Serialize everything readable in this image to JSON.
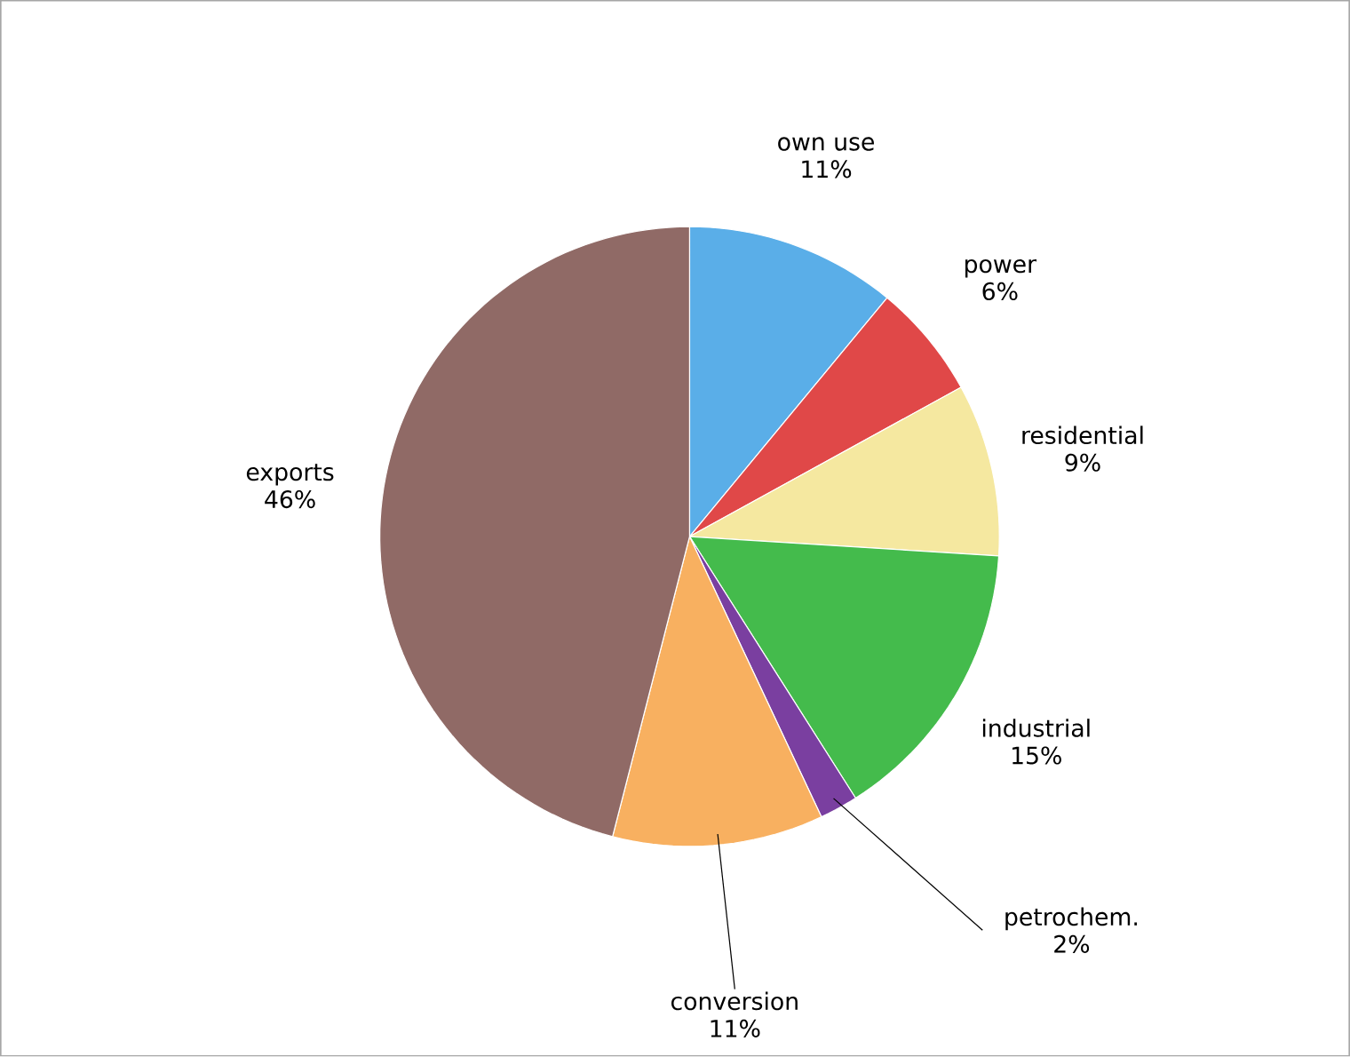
{
  "chart_data": {
    "type": "pie",
    "categories": [
      "own use",
      "power",
      "residential",
      "industrial",
      "petrochem.",
      "conversion",
      "exports"
    ],
    "values": [
      11,
      6,
      9,
      15,
      2,
      11,
      46
    ],
    "value_labels": [
      "11%",
      "6%",
      "9%",
      "15%",
      "2%",
      "11%",
      "46%"
    ],
    "colors": [
      "#5aaee8",
      "#e04848",
      "#f5e8a0",
      "#44bb4c",
      "#7a3fa0",
      "#f8b060",
      "#906a66"
    ]
  }
}
